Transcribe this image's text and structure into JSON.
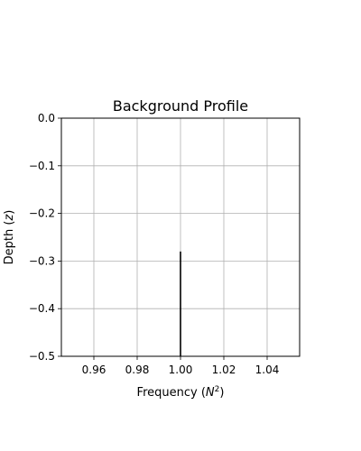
{
  "chart_data": {
    "type": "line",
    "title": "Background Profile",
    "xlabel_prefix": "Frequency (",
    "xlabel_var": "N",
    "xlabel_sup": "2",
    "xlabel_suffix": ")",
    "ylabel_prefix": "Depth (",
    "ylabel_var": "z",
    "ylabel_suffix": ")",
    "xlim": [
      0.945,
      1.055
    ],
    "ylim": [
      -0.5,
      0.0
    ],
    "x_ticks": [
      0.96,
      0.98,
      1.0,
      1.02,
      1.04
    ],
    "x_tick_labels": [
      "0.96",
      "0.98",
      "1.00",
      "1.02",
      "1.04"
    ],
    "y_ticks": [
      0.0,
      -0.1,
      -0.2,
      -0.3,
      -0.4,
      -0.5
    ],
    "y_tick_labels": [
      "0.0",
      "−0.1",
      "−0.2",
      "−0.3",
      "−0.4",
      "−0.5"
    ],
    "grid": true,
    "series": [
      {
        "x": [
          1.0,
          1.0
        ],
        "y": [
          -0.5,
          -0.28
        ],
        "color": "#000000"
      }
    ]
  }
}
